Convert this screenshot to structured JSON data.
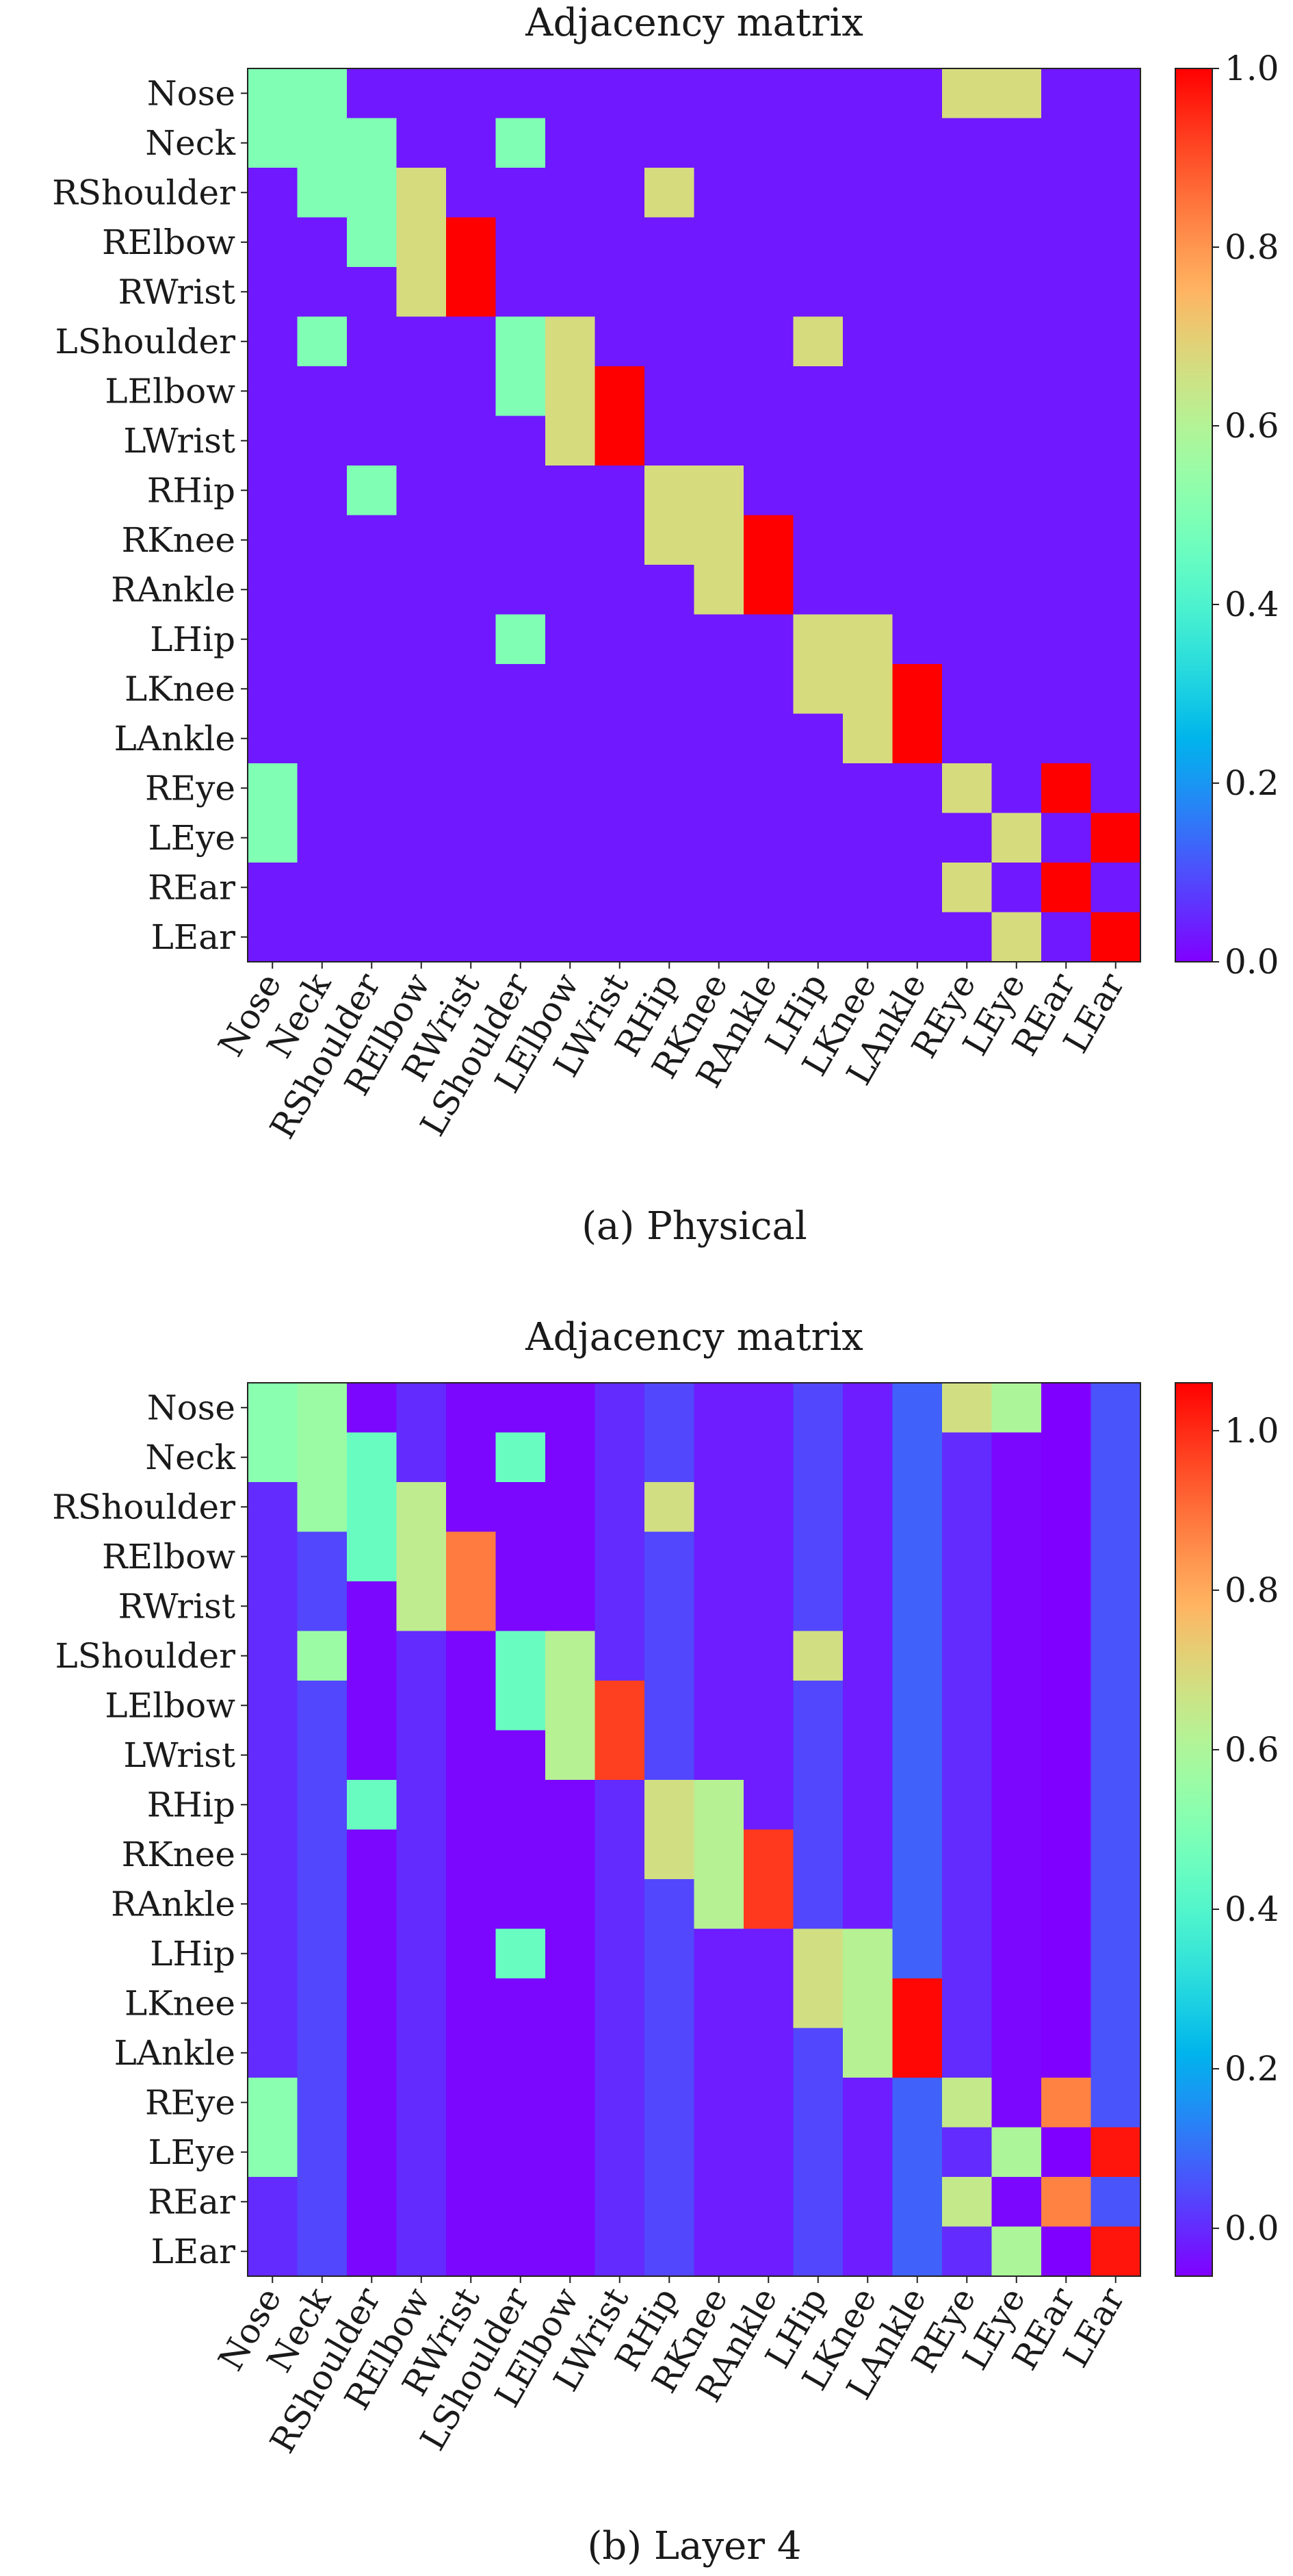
{
  "charts": [
    {
      "caption": "(a) Physical",
      "chart_data": {
        "type": "heatmap",
        "title": "Adjacency matrix",
        "labels": [
          "Nose",
          "Neck",
          "RShoulder",
          "RElbow",
          "RWrist",
          "LShoulder",
          "LElbow",
          "LWrist",
          "RHip",
          "RKnee",
          "RAnkle",
          "LHip",
          "LKnee",
          "LAnkle",
          "REye",
          "LEye",
          "REar",
          "LEar"
        ],
        "colormap": "rainbow",
        "vmin": 0.0,
        "vmax": 1.0,
        "colorbar_ticks": [
          0.0,
          0.2,
          0.4,
          0.6,
          0.8,
          1.0
        ],
        "colorbar_tick_labels": [
          "0.0",
          "0.2",
          "0.4",
          "0.6",
          "0.8",
          "1.0"
        ],
        "background": 0.03,
        "cells": [
          [
            0,
            0,
            0.5
          ],
          [
            0,
            1,
            0.5
          ],
          [
            0,
            14,
            0.67
          ],
          [
            0,
            15,
            0.67
          ],
          [
            1,
            0,
            0.5
          ],
          [
            1,
            1,
            0.5
          ],
          [
            1,
            2,
            0.5
          ],
          [
            1,
            5,
            0.5
          ],
          [
            2,
            1,
            0.5
          ],
          [
            2,
            2,
            0.5
          ],
          [
            2,
            3,
            0.67
          ],
          [
            2,
            8,
            0.67
          ],
          [
            3,
            2,
            0.5
          ],
          [
            3,
            3,
            0.67
          ],
          [
            3,
            4,
            1.0
          ],
          [
            4,
            3,
            0.67
          ],
          [
            4,
            4,
            1.0
          ],
          [
            5,
            1,
            0.5
          ],
          [
            5,
            5,
            0.5
          ],
          [
            5,
            6,
            0.67
          ],
          [
            5,
            11,
            0.67
          ],
          [
            6,
            5,
            0.5
          ],
          [
            6,
            6,
            0.67
          ],
          [
            6,
            7,
            1.0
          ],
          [
            7,
            6,
            0.67
          ],
          [
            7,
            7,
            1.0
          ],
          [
            8,
            2,
            0.5
          ],
          [
            8,
            8,
            0.67
          ],
          [
            8,
            9,
            0.67
          ],
          [
            9,
            8,
            0.67
          ],
          [
            9,
            9,
            0.67
          ],
          [
            9,
            10,
            1.0
          ],
          [
            10,
            9,
            0.67
          ],
          [
            10,
            10,
            1.0
          ],
          [
            11,
            5,
            0.5
          ],
          [
            11,
            11,
            0.67
          ],
          [
            11,
            12,
            0.67
          ],
          [
            12,
            11,
            0.67
          ],
          [
            12,
            12,
            0.67
          ],
          [
            12,
            13,
            1.0
          ],
          [
            13,
            12,
            0.67
          ],
          [
            13,
            13,
            1.0
          ],
          [
            14,
            0,
            0.5
          ],
          [
            14,
            14,
            0.67
          ],
          [
            14,
            16,
            1.0
          ],
          [
            15,
            0,
            0.5
          ],
          [
            15,
            15,
            0.67
          ],
          [
            15,
            17,
            1.0
          ],
          [
            16,
            14,
            0.67
          ],
          [
            16,
            16,
            1.0
          ],
          [
            17,
            15,
            0.67
          ],
          [
            17,
            17,
            1.0
          ]
        ]
      }
    },
    {
      "caption": "(b) Layer 4",
      "chart_data": {
        "type": "heatmap",
        "title": "Adjacency matrix",
        "labels": [
          "Nose",
          "Neck",
          "RShoulder",
          "RElbow",
          "RWrist",
          "LShoulder",
          "LElbow",
          "LWrist",
          "RHip",
          "RKnee",
          "RAnkle",
          "LHip",
          "LKnee",
          "LAnkle",
          "REye",
          "LEye",
          "REar",
          "LEar"
        ],
        "colormap": "rainbow",
        "vmin": -0.06,
        "vmax": 1.06,
        "colorbar_ticks": [
          0.0,
          0.2,
          0.4,
          0.6,
          0.8,
          1.0
        ],
        "colorbar_tick_labels": [
          "0.0",
          "0.2",
          "0.4",
          "0.6",
          "0.8",
          "1.0"
        ],
        "column_background": [
          0.0,
          0.04,
          -0.05,
          0.0,
          -0.05,
          -0.05,
          -0.05,
          0.0,
          0.04,
          -0.02,
          -0.02,
          0.04,
          -0.02,
          0.08,
          0.0,
          -0.05,
          -0.06,
          0.06
        ],
        "cells": [
          [
            0,
            0,
            0.52
          ],
          [
            0,
            1,
            0.56
          ],
          [
            0,
            14,
            0.68
          ],
          [
            0,
            15,
            0.6
          ],
          [
            1,
            0,
            0.52
          ],
          [
            1,
            1,
            0.56
          ],
          [
            1,
            2,
            0.45
          ],
          [
            1,
            5,
            0.45
          ],
          [
            2,
            1,
            0.56
          ],
          [
            2,
            2,
            0.45
          ],
          [
            2,
            3,
            0.64
          ],
          [
            2,
            8,
            0.68
          ],
          [
            3,
            2,
            0.45
          ],
          [
            3,
            3,
            0.64
          ],
          [
            3,
            4,
            0.88
          ],
          [
            4,
            3,
            0.64
          ],
          [
            4,
            4,
            0.88
          ],
          [
            5,
            1,
            0.56
          ],
          [
            5,
            5,
            0.45
          ],
          [
            5,
            6,
            0.62
          ],
          [
            5,
            11,
            0.68
          ],
          [
            6,
            5,
            0.45
          ],
          [
            6,
            6,
            0.62
          ],
          [
            6,
            7,
            0.97
          ],
          [
            7,
            6,
            0.62
          ],
          [
            7,
            7,
            0.97
          ],
          [
            8,
            2,
            0.45
          ],
          [
            8,
            8,
            0.68
          ],
          [
            8,
            9,
            0.62
          ],
          [
            9,
            8,
            0.68
          ],
          [
            9,
            9,
            0.62
          ],
          [
            9,
            10,
            0.98
          ],
          [
            10,
            9,
            0.62
          ],
          [
            10,
            10,
            0.98
          ],
          [
            11,
            5,
            0.45
          ],
          [
            11,
            11,
            0.68
          ],
          [
            11,
            12,
            0.62
          ],
          [
            12,
            11,
            0.68
          ],
          [
            12,
            12,
            0.62
          ],
          [
            12,
            13,
            1.05
          ],
          [
            13,
            12,
            0.62
          ],
          [
            13,
            13,
            1.05
          ],
          [
            14,
            0,
            0.52
          ],
          [
            14,
            14,
            0.65
          ],
          [
            14,
            16,
            0.87
          ],
          [
            15,
            0,
            0.52
          ],
          [
            15,
            15,
            0.6
          ],
          [
            15,
            17,
            1.03
          ],
          [
            16,
            14,
            0.65
          ],
          [
            16,
            16,
            0.87
          ],
          [
            17,
            15,
            0.6
          ],
          [
            17,
            17,
            1.03
          ]
        ]
      }
    }
  ]
}
